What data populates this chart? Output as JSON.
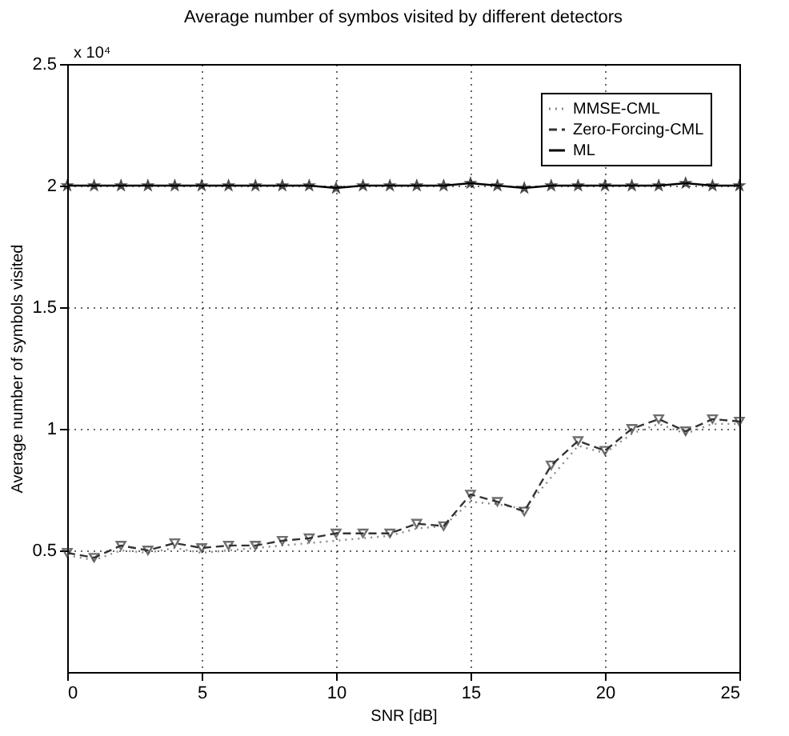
{
  "chart_data": {
    "type": "line",
    "title": "Average number of symbos visited by  different detectors",
    "xlabel": "SNR [dB]",
    "ylabel": "Average number of symbols visited",
    "annotations": [
      "x 10⁴"
    ],
    "x": [
      0,
      1,
      2,
      3,
      4,
      5,
      6,
      7,
      8,
      9,
      10,
      11,
      12,
      13,
      14,
      15,
      16,
      17,
      18,
      19,
      20,
      21,
      22,
      23,
      24,
      25
    ],
    "series": [
      {
        "name": "MMSE-CML",
        "color": "#8a8a8a",
        "line_style": "dotted",
        "marker": "none",
        "values": [
          0.48,
          0.46,
          0.5,
          0.49,
          0.51,
          0.49,
          0.5,
          0.51,
          0.52,
          0.53,
          0.54,
          0.55,
          0.56,
          0.59,
          0.6,
          0.7,
          0.69,
          0.67,
          0.8,
          0.93,
          0.9,
          0.98,
          1.02,
          0.98,
          1.02,
          1.02
        ]
      },
      {
        "name": "Zero-Forcing-CML",
        "color": "#333333",
        "line_style": "dashed",
        "marker": "triangle",
        "values": [
          0.49,
          0.47,
          0.52,
          0.5,
          0.53,
          0.51,
          0.52,
          0.52,
          0.54,
          0.55,
          0.57,
          0.57,
          0.57,
          0.61,
          0.6,
          0.73,
          0.7,
          0.66,
          0.85,
          0.95,
          0.91,
          1.0,
          1.04,
          0.99,
          1.04,
          1.03
        ]
      },
      {
        "name": "ML",
        "color": "#000000",
        "line_style": "solid",
        "marker": "star",
        "values": [
          2.0,
          2.0,
          2.0,
          2.0,
          2.0,
          2.0,
          2.0,
          2.0,
          2.0,
          2.0,
          1.99,
          2.0,
          2.0,
          2.0,
          2.0,
          2.01,
          2.0,
          1.99,
          2.0,
          2.0,
          2.0,
          2.0,
          2.0,
          2.01,
          2.0,
          2.0
        ]
      }
    ],
    "xlim": [
      0,
      25
    ],
    "xticks": [
      0,
      5,
      10,
      15,
      20,
      25
    ],
    "ylim": [
      0,
      2.5
    ],
    "yticks": [
      0.5,
      1,
      1.5,
      2,
      2.5
    ],
    "grid": true,
    "legend": "top right"
  }
}
